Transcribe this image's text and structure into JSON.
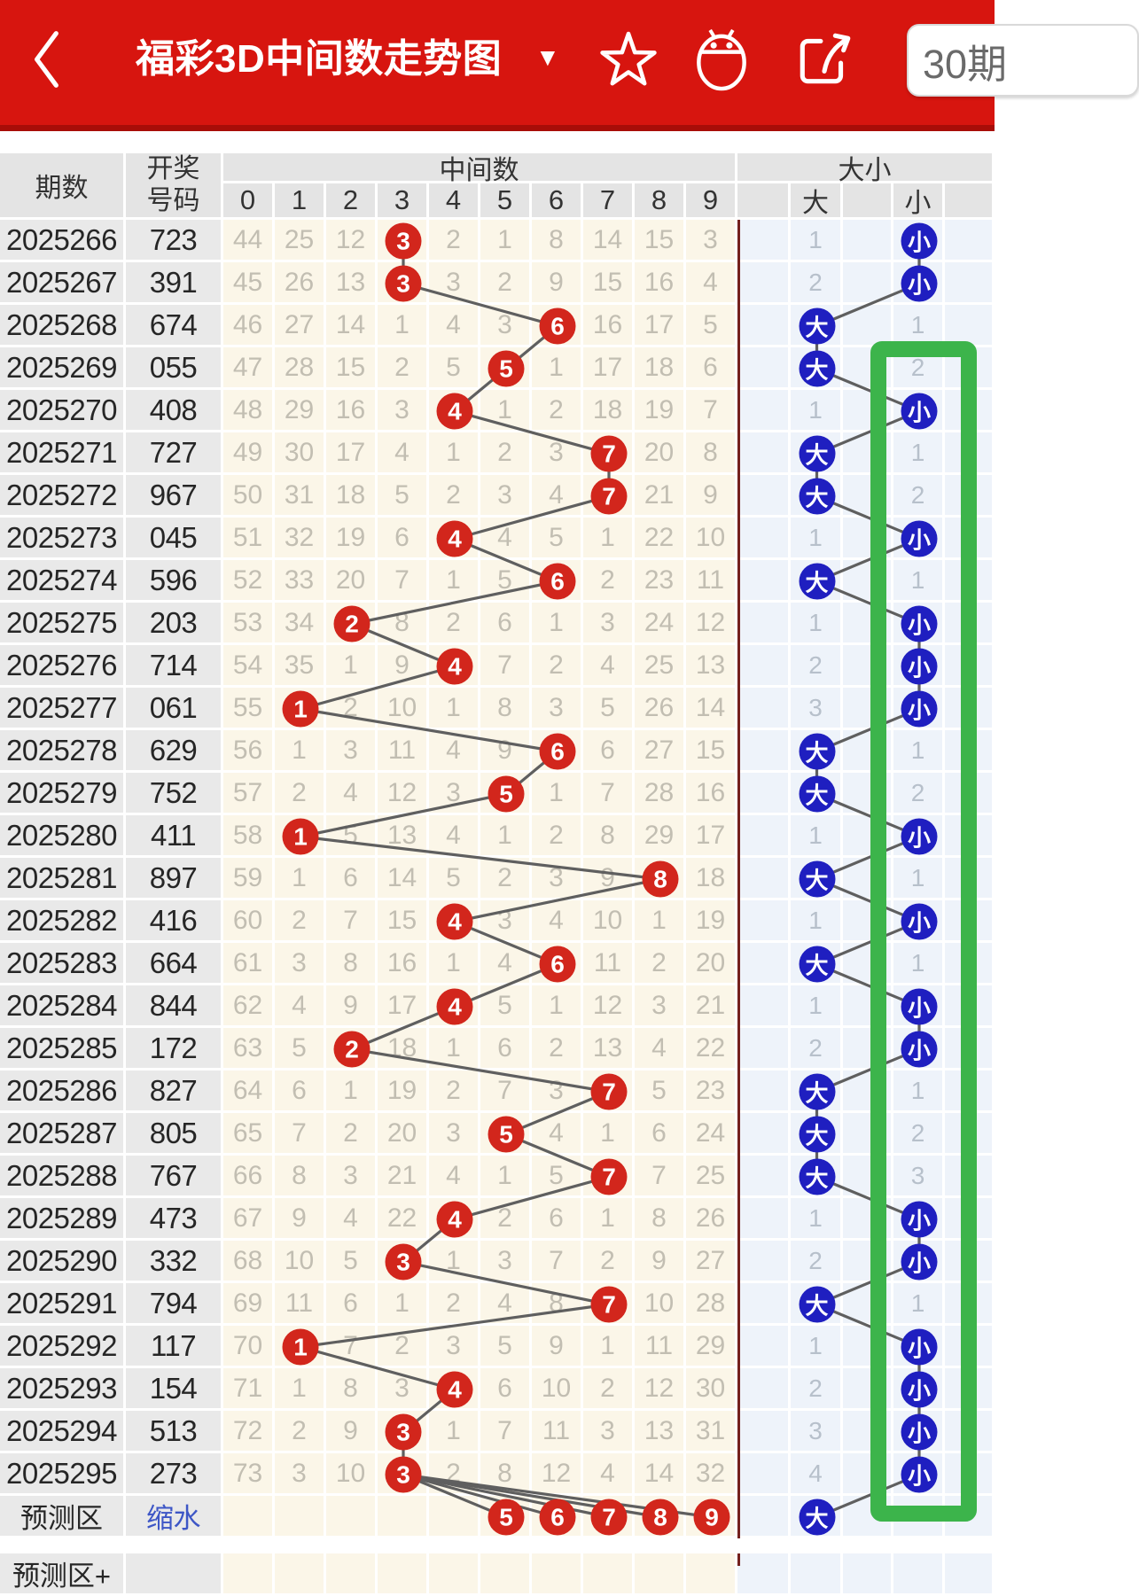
{
  "app_bar": {
    "title": "福彩3D中间数走势图",
    "dropdown_glyph": "▼",
    "period_selector": "30期",
    "icons": [
      "back-chevron",
      "favorite-star",
      "android-robot",
      "share-arrow"
    ]
  },
  "table": {
    "header": {
      "col_period": "期数",
      "col_number_line1": "开奖",
      "col_number_line2": "号码",
      "group_middle": "中间数",
      "group_daxiao": "大小",
      "digit_cols": [
        "0",
        "1",
        "2",
        "3",
        "4",
        "5",
        "6",
        "7",
        "8",
        "9"
      ],
      "col_da": "大",
      "col_xiao": "小"
    },
    "rows": [
      {
        "period": "2025266",
        "number": "723",
        "cells": [
          "44",
          "25",
          "12",
          "3",
          "2",
          "1",
          "8",
          "14",
          "15",
          "3"
        ],
        "hit_col": 3,
        "side": "小",
        "opp_count": "1"
      },
      {
        "period": "2025267",
        "number": "391",
        "cells": [
          "45",
          "26",
          "13",
          "3",
          "3",
          "2",
          "9",
          "15",
          "16",
          "4"
        ],
        "hit_col": 3,
        "side": "小",
        "opp_count": "2"
      },
      {
        "period": "2025268",
        "number": "674",
        "cells": [
          "46",
          "27",
          "14",
          "1",
          "4",
          "3",
          "6",
          "16",
          "17",
          "5"
        ],
        "hit_col": 6,
        "side": "大",
        "opp_count": "1"
      },
      {
        "period": "2025269",
        "number": "055",
        "cells": [
          "47",
          "28",
          "15",
          "2",
          "5",
          "5",
          "1",
          "17",
          "18",
          "6"
        ],
        "hit_col": 5,
        "side": "大",
        "opp_count": "2"
      },
      {
        "period": "2025270",
        "number": "408",
        "cells": [
          "48",
          "29",
          "16",
          "3",
          "4",
          "1",
          "2",
          "18",
          "19",
          "7"
        ],
        "hit_col": 4,
        "side": "小",
        "opp_count": "1"
      },
      {
        "period": "2025271",
        "number": "727",
        "cells": [
          "49",
          "30",
          "17",
          "4",
          "1",
          "2",
          "3",
          "7",
          "20",
          "8"
        ],
        "hit_col": 7,
        "side": "大",
        "opp_count": "1"
      },
      {
        "period": "2025272",
        "number": "967",
        "cells": [
          "50",
          "31",
          "18",
          "5",
          "2",
          "3",
          "4",
          "7",
          "21",
          "9"
        ],
        "hit_col": 7,
        "side": "大",
        "opp_count": "2"
      },
      {
        "period": "2025273",
        "number": "045",
        "cells": [
          "51",
          "32",
          "19",
          "6",
          "4",
          "4",
          "5",
          "1",
          "22",
          "10"
        ],
        "hit_col": 4,
        "side": "小",
        "opp_count": "1"
      },
      {
        "period": "2025274",
        "number": "596",
        "cells": [
          "52",
          "33",
          "20",
          "7",
          "1",
          "5",
          "6",
          "2",
          "23",
          "11"
        ],
        "hit_col": 6,
        "side": "大",
        "opp_count": "1"
      },
      {
        "period": "2025275",
        "number": "203",
        "cells": [
          "53",
          "34",
          "2",
          "8",
          "2",
          "6",
          "1",
          "3",
          "24",
          "12"
        ],
        "hit_col": 2,
        "side": "小",
        "opp_count": "1"
      },
      {
        "period": "2025276",
        "number": "714",
        "cells": [
          "54",
          "35",
          "1",
          "9",
          "4",
          "7",
          "2",
          "4",
          "25",
          "13"
        ],
        "hit_col": 4,
        "side": "小",
        "opp_count": "2"
      },
      {
        "period": "2025277",
        "number": "061",
        "cells": [
          "55",
          "1",
          "2",
          "10",
          "1",
          "8",
          "3",
          "5",
          "26",
          "14"
        ],
        "hit_col": 1,
        "side": "小",
        "opp_count": "3"
      },
      {
        "period": "2025278",
        "number": "629",
        "cells": [
          "56",
          "1",
          "3",
          "11",
          "4",
          "9",
          "6",
          "6",
          "27",
          "15"
        ],
        "hit_col": 6,
        "side": "大",
        "opp_count": "1"
      },
      {
        "period": "2025279",
        "number": "752",
        "cells": [
          "57",
          "2",
          "4",
          "12",
          "3",
          "5",
          "1",
          "7",
          "28",
          "16"
        ],
        "hit_col": 5,
        "side": "大",
        "opp_count": "2"
      },
      {
        "period": "2025280",
        "number": "411",
        "cells": [
          "58",
          "1",
          "5",
          "13",
          "4",
          "1",
          "2",
          "8",
          "29",
          "17"
        ],
        "hit_col": 1,
        "side": "小",
        "opp_count": "1"
      },
      {
        "period": "2025281",
        "number": "897",
        "cells": [
          "59",
          "1",
          "6",
          "14",
          "5",
          "2",
          "3",
          "9",
          "8",
          "18"
        ],
        "hit_col": 8,
        "side": "大",
        "opp_count": "1"
      },
      {
        "period": "2025282",
        "number": "416",
        "cells": [
          "60",
          "2",
          "7",
          "15",
          "4",
          "3",
          "4",
          "10",
          "1",
          "19"
        ],
        "hit_col": 4,
        "side": "小",
        "opp_count": "1"
      },
      {
        "period": "2025283",
        "number": "664",
        "cells": [
          "61",
          "3",
          "8",
          "16",
          "1",
          "4",
          "6",
          "11",
          "2",
          "20"
        ],
        "hit_col": 6,
        "side": "大",
        "opp_count": "1"
      },
      {
        "period": "2025284",
        "number": "844",
        "cells": [
          "62",
          "4",
          "9",
          "17",
          "4",
          "5",
          "1",
          "12",
          "3",
          "21"
        ],
        "hit_col": 4,
        "side": "小",
        "opp_count": "1"
      },
      {
        "period": "2025285",
        "number": "172",
        "cells": [
          "63",
          "5",
          "2",
          "18",
          "1",
          "6",
          "2",
          "13",
          "4",
          "22"
        ],
        "hit_col": 2,
        "side": "小",
        "opp_count": "2"
      },
      {
        "period": "2025286",
        "number": "827",
        "cells": [
          "64",
          "6",
          "1",
          "19",
          "2",
          "7",
          "3",
          "7",
          "5",
          "23"
        ],
        "hit_col": 7,
        "side": "大",
        "opp_count": "1"
      },
      {
        "period": "2025287",
        "number": "805",
        "cells": [
          "65",
          "7",
          "2",
          "20",
          "3",
          "5",
          "4",
          "1",
          "6",
          "24"
        ],
        "hit_col": 5,
        "side": "大",
        "opp_count": "2"
      },
      {
        "period": "2025288",
        "number": "767",
        "cells": [
          "66",
          "8",
          "3",
          "21",
          "4",
          "1",
          "5",
          "7",
          "7",
          "25"
        ],
        "hit_col": 7,
        "side": "大",
        "opp_count": "3"
      },
      {
        "period": "2025289",
        "number": "473",
        "cells": [
          "67",
          "9",
          "4",
          "22",
          "4",
          "2",
          "6",
          "1",
          "8",
          "26"
        ],
        "hit_col": 4,
        "side": "小",
        "opp_count": "1"
      },
      {
        "period": "2025290",
        "number": "332",
        "cells": [
          "68",
          "10",
          "5",
          "3",
          "1",
          "3",
          "7",
          "2",
          "9",
          "27"
        ],
        "hit_col": 3,
        "side": "小",
        "opp_count": "2"
      },
      {
        "period": "2025291",
        "number": "794",
        "cells": [
          "69",
          "11",
          "6",
          "1",
          "2",
          "4",
          "8",
          "7",
          "10",
          "28"
        ],
        "hit_col": 7,
        "side": "大",
        "opp_count": "1"
      },
      {
        "period": "2025292",
        "number": "117",
        "cells": [
          "70",
          "1",
          "7",
          "2",
          "3",
          "5",
          "9",
          "1",
          "11",
          "29"
        ],
        "hit_col": 1,
        "side": "小",
        "opp_count": "1"
      },
      {
        "period": "2025293",
        "number": "154",
        "cells": [
          "71",
          "1",
          "8",
          "3",
          "4",
          "6",
          "10",
          "2",
          "12",
          "30"
        ],
        "hit_col": 4,
        "side": "小",
        "opp_count": "2"
      },
      {
        "period": "2025294",
        "number": "513",
        "cells": [
          "72",
          "2",
          "9",
          "3",
          "1",
          "7",
          "11",
          "3",
          "13",
          "31"
        ],
        "hit_col": 3,
        "side": "小",
        "opp_count": "3"
      },
      {
        "period": "2025295",
        "number": "273",
        "cells": [
          "73",
          "3",
          "10",
          "3",
          "2",
          "8",
          "12",
          "4",
          "14",
          "32"
        ],
        "hit_col": 3,
        "side": "小",
        "opp_count": "4"
      }
    ],
    "prediction_row": {
      "period": "预测区",
      "number_link": "缩水",
      "pred_cols": [
        5,
        6,
        7,
        8,
        9
      ],
      "pred_labels": [
        "5",
        "6",
        "7",
        "8",
        "9"
      ],
      "side": "大"
    },
    "prediction_plus": {
      "period": "预测区+"
    }
  },
  "colors": {
    "app_bar_red": "#d7150f",
    "app_bar_strip": "#a80d08",
    "hit_circle_red": "#d2261c",
    "daxiao_circle_blue": "#1f1fc0",
    "trend_line_gray": "#5f5f5f",
    "highlight_green": "#3cb44b",
    "section_divider_maroon": "#74201d",
    "digit_area_cream": "#fbf6e8",
    "daxiao_area_blue": "#eef3fa",
    "link_blue": "#3d56c6"
  }
}
